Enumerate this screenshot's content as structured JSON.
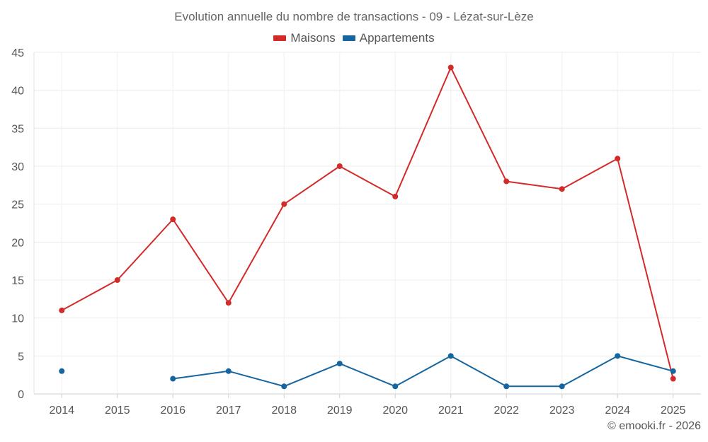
{
  "chart_data": {
    "type": "line",
    "title": "Evolution annuelle du nombre de transactions - 09 - Lézat-sur-Lèze",
    "categories": [
      "2014",
      "2015",
      "2016",
      "2017",
      "2018",
      "2019",
      "2020",
      "2021",
      "2022",
      "2023",
      "2024",
      "2025"
    ],
    "series": [
      {
        "name": "Maisons",
        "color": "#d32a2a",
        "values": [
          11,
          15,
          23,
          12,
          25,
          30,
          26,
          43,
          28,
          27,
          31,
          2
        ]
      },
      {
        "name": "Appartements",
        "color": "#1565a0",
        "values": [
          3,
          null,
          2,
          3,
          1,
          4,
          1,
          5,
          1,
          1,
          5,
          3
        ]
      }
    ],
    "ylim": [
      0,
      45
    ],
    "yticks": [
      0,
      5,
      10,
      15,
      20,
      25,
      30,
      35,
      40,
      45
    ],
    "grid": true,
    "legend_position": "top-center"
  },
  "credit": "© emooki.fr - 2026"
}
